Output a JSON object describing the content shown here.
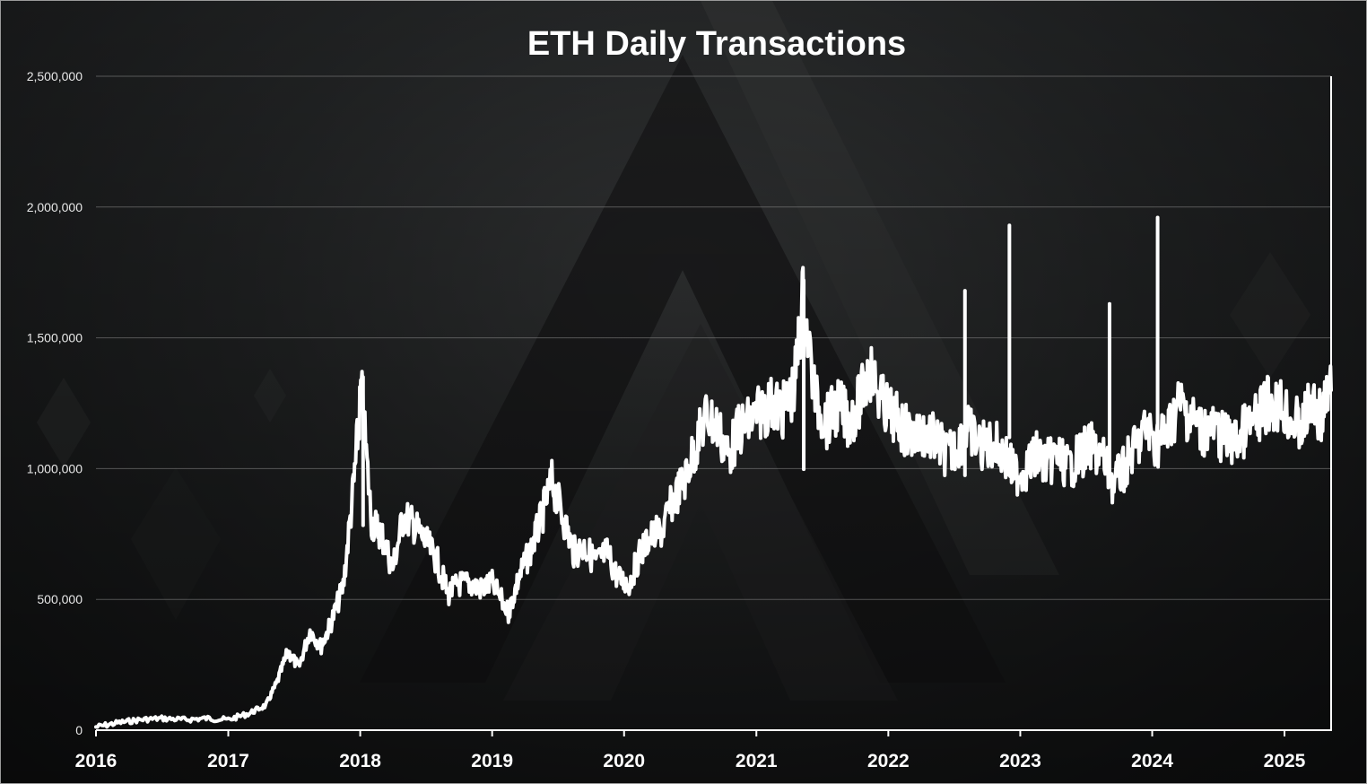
{
  "chart_data": {
    "type": "line",
    "title": "ETH Daily Transactions",
    "xlabel": "",
    "ylabel": "",
    "x_ticks": [
      "2016",
      "2017",
      "2018",
      "2019",
      "2020",
      "2021",
      "2022",
      "2023",
      "2024",
      "2025"
    ],
    "y_ticks": [
      "0",
      "500,000",
      "1,000,000",
      "1,500,000",
      "2,000,000",
      "2,500,000"
    ],
    "xlim": [
      "2016-01-01",
      "2025-05-10"
    ],
    "ylim": [
      0,
      2500000
    ],
    "grid": "horizontal",
    "legend": "none",
    "colors": {
      "line": "#ffffff",
      "grid": "#8a8a8a"
    },
    "series": [
      {
        "points": [
          [
            "2016-01-01",
            12000
          ],
          [
            "2016-03-01",
            28000
          ],
          [
            "2016-05-01",
            40000
          ],
          [
            "2016-07-01",
            45000
          ],
          [
            "2016-09-01",
            40000
          ],
          [
            "2016-11-01",
            45000
          ],
          [
            "2017-01-01",
            40000
          ],
          [
            "2017-03-01",
            65000
          ],
          [
            "2017-04-15",
            95000
          ],
          [
            "2017-05-15",
            180000
          ],
          [
            "2017-06-15",
            300000
          ],
          [
            "2017-07-15",
            240000
          ],
          [
            "2017-08-15",
            380000
          ],
          [
            "2017-09-15",
            320000
          ],
          [
            "2017-10-15",
            420000
          ],
          [
            "2017-11-15",
            550000
          ],
          [
            "2017-12-15",
            950000
          ],
          [
            "2018-01-04",
            1300000
          ],
          [
            "2018-02-01",
            800000
          ],
          [
            "2018-03-01",
            750000
          ],
          [
            "2018-04-01",
            620000
          ],
          [
            "2018-05-01",
            820000
          ],
          [
            "2018-06-01",
            780000
          ],
          [
            "2018-07-01",
            720000
          ],
          [
            "2018-08-01",
            650000
          ],
          [
            "2018-09-01",
            520000
          ],
          [
            "2018-10-01",
            560000
          ],
          [
            "2018-11-01",
            560000
          ],
          [
            "2018-12-01",
            540000
          ],
          [
            "2019-01-01",
            560000
          ],
          [
            "2019-02-15",
            450000
          ],
          [
            "2019-03-15",
            580000
          ],
          [
            "2019-04-15",
            680000
          ],
          [
            "2019-05-15",
            800000
          ],
          [
            "2019-06-15",
            950000
          ],
          [
            "2019-07-15",
            820000
          ],
          [
            "2019-08-15",
            680000
          ],
          [
            "2019-09-15",
            700000
          ],
          [
            "2019-10-15",
            640000
          ],
          [
            "2019-11-15",
            680000
          ],
          [
            "2019-12-15",
            580000
          ],
          [
            "2020-01-15",
            560000
          ],
          [
            "2020-02-15",
            680000
          ],
          [
            "2020-03-15",
            740000
          ],
          [
            "2020-04-15",
            760000
          ],
          [
            "2020-05-15",
            880000
          ],
          [
            "2020-06-15",
            950000
          ],
          [
            "2020-07-15",
            1080000
          ],
          [
            "2020-08-15",
            1200000
          ],
          [
            "2020-09-15",
            1160000
          ],
          [
            "2020-10-15",
            1050000
          ],
          [
            "2020-11-15",
            1150000
          ],
          [
            "2020-12-15",
            1180000
          ],
          [
            "2021-01-15",
            1220000
          ],
          [
            "2021-02-15",
            1250000
          ],
          [
            "2021-03-15",
            1220000
          ],
          [
            "2021-04-15",
            1300000
          ],
          [
            "2021-05-10",
            1650000
          ],
          [
            "2021-06-15",
            1250000
          ],
          [
            "2021-07-15",
            1180000
          ],
          [
            "2021-08-15",
            1240000
          ],
          [
            "2021-09-15",
            1180000
          ],
          [
            "2021-10-15",
            1260000
          ],
          [
            "2021-11-10",
            1380000
          ],
          [
            "2021-12-15",
            1250000
          ],
          [
            "2022-01-15",
            1200000
          ],
          [
            "2022-02-15",
            1150000
          ],
          [
            "2022-03-15",
            1120000
          ],
          [
            "2022-04-15",
            1140000
          ],
          [
            "2022-05-15",
            1100000
          ],
          [
            "2022-06-15",
            1050000
          ],
          [
            "2022-07-15",
            1100000
          ],
          [
            "2022-08-10",
            1150000
          ],
          [
            "2022-09-15",
            1080000
          ],
          [
            "2022-10-15",
            1100000
          ],
          [
            "2022-11-20",
            1050000
          ],
          [
            "2022-12-15",
            980000
          ],
          [
            "2023-01-15",
            1000000
          ],
          [
            "2023-02-15",
            1050000
          ],
          [
            "2023-03-15",
            1020000
          ],
          [
            "2023-04-15",
            1050000
          ],
          [
            "2023-05-15",
            1000000
          ],
          [
            "2023-06-15",
            1050000
          ],
          [
            "2023-07-15",
            1080000
          ],
          [
            "2023-08-15",
            1050000
          ],
          [
            "2023-09-15",
            940000
          ],
          [
            "2023-10-15",
            1000000
          ],
          [
            "2023-11-15",
            1080000
          ],
          [
            "2023-12-15",
            1150000
          ],
          [
            "2024-01-15",
            1100000
          ],
          [
            "2024-02-15",
            1150000
          ],
          [
            "2024-03-15",
            1250000
          ],
          [
            "2024-04-15",
            1200000
          ],
          [
            "2024-05-15",
            1150000
          ],
          [
            "2024-06-15",
            1150000
          ],
          [
            "2024-07-15",
            1120000
          ],
          [
            "2024-08-15",
            1100000
          ],
          [
            "2024-09-15",
            1150000
          ],
          [
            "2024-10-15",
            1180000
          ],
          [
            "2024-11-15",
            1250000
          ],
          [
            "2024-12-15",
            1250000
          ],
          [
            "2025-01-15",
            1200000
          ],
          [
            "2025-02-15",
            1150000
          ],
          [
            "2025-03-15",
            1250000
          ],
          [
            "2025-04-15",
            1200000
          ],
          [
            "2025-05-10",
            1300000
          ]
        ],
        "spikes": [
          [
            "2022-08-01",
            1680000
          ],
          [
            "2022-12-02",
            1930000
          ],
          [
            "2023-09-05",
            1630000
          ],
          [
            "2024-01-16",
            1960000
          ],
          [
            "2021-05-12",
            1720000
          ],
          [
            "2018-01-09",
            1350000
          ]
        ]
      }
    ]
  }
}
